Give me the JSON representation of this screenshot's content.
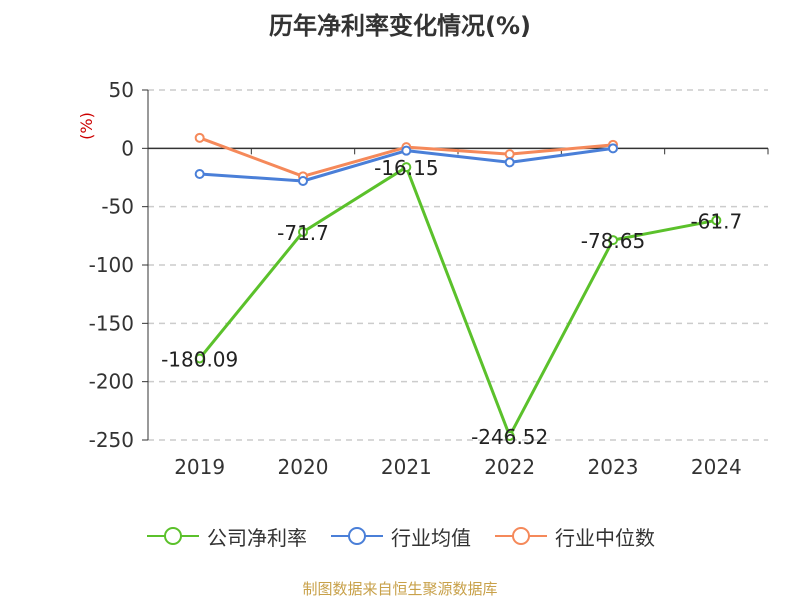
{
  "title": "历年净利率变化情况(%)",
  "source": "制图数据来自恒生聚源数据库",
  "colors": {
    "company": "#5bc12b",
    "industry_avg": "#4a7fd8",
    "industry_median": "#f5895a",
    "unit": "#cc0000"
  },
  "chart_data": {
    "type": "line",
    "categories": [
      "2019",
      "2020",
      "2021",
      "2022",
      "2023",
      "2024"
    ],
    "y_unit": "(%)",
    "ylim": [
      -250,
      50
    ],
    "y_ticks": [
      "50",
      "0",
      "-50",
      "-100",
      "-150",
      "-200",
      "-250"
    ],
    "grid": true,
    "legend_position": "bottom",
    "series": [
      {
        "name": "公司净利率",
        "values": [
          -180.09,
          -71.7,
          -16.15,
          -246.52,
          -78.65,
          -61.7
        ],
        "labels": [
          "-180.09",
          "-71.7",
          "-16.15",
          "-246.52",
          "-78.65",
          "-61.7"
        ]
      },
      {
        "name": "行业均值",
        "values": [
          -22,
          -28,
          -2,
          -12,
          0,
          null
        ]
      },
      {
        "name": "行业中位数",
        "values": [
          9,
          -24,
          1,
          -5,
          3,
          null
        ]
      }
    ]
  }
}
